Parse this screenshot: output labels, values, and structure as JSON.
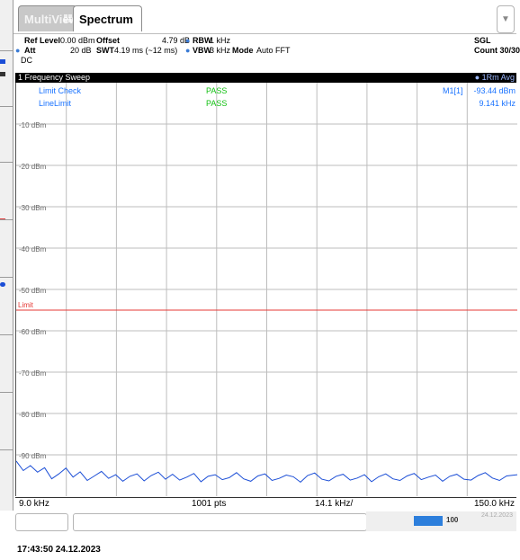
{
  "tabs": [
    {
      "label": "MultiView",
      "active": false
    },
    {
      "label": "Spectrum",
      "active": true
    }
  ],
  "params": {
    "ref_level_label": "Ref Level",
    "ref_level_value": "0.00 dBm",
    "offset_label": "Offset",
    "offset_value": "4.79 dB",
    "rbw_label": "RBW",
    "rbw_value": "1 kHz",
    "att_label": "Att",
    "att_value": "20 dB",
    "swt_label": "SWT",
    "swt_value": "4.19 ms (~12 ms)",
    "vbw_label": "VBW",
    "vbw_value": "3 kHz",
    "mode_label": "Mode",
    "mode_value": "Auto FFT",
    "coupling": "DC",
    "sweep_mode": "SGL",
    "count": "Count 30/30"
  },
  "trace": {
    "title": "1 Frequency Sweep",
    "detector": "1Rm Avg"
  },
  "overlay": {
    "limit_check_label": "Limit Check",
    "limit_check_result": "PASS",
    "line_limit_label": "LineLimit",
    "line_limit_result": "PASS",
    "marker_label": "M1[1]",
    "marker_level": "-93.44 dBm",
    "marker_freq": "9.141 kHz",
    "limit_tag": "Limit"
  },
  "axis": {
    "start": "9.0 kHz",
    "points": "1001 pts",
    "per_div": "14.1 kHz/",
    "stop": "150.0 kHz"
  },
  "status": {
    "progress_label": "100",
    "date": "24.12.2023"
  },
  "timestamp": "17:43:50  24.12.2023",
  "chart_data": {
    "type": "line",
    "ytick_labels": [
      "-10 dBm",
      "-20 dBm",
      "-30 dBm",
      "-40 dBm",
      "-50 dBm",
      "-60 dBm",
      "-70 dBm",
      "-80 dBm",
      "-90 dBm"
    ],
    "ylim": [
      -100,
      0
    ],
    "xlim": [
      9.0,
      150.0
    ],
    "limit_line_dbm": -55,
    "grid": true,
    "series": [
      {
        "color": "#1a4dd6",
        "x": [
          9.0,
          11.0,
          13.0,
          15.0,
          17.0,
          19.0,
          21.0,
          23.0,
          25.0,
          27.0,
          29.0,
          31.0,
          33.0,
          35.0,
          37.0,
          39.0,
          41.0,
          43.0,
          45.0,
          47.0,
          49.0,
          51.0,
          53.0,
          55.0,
          57.0,
          59.0,
          61.0,
          63.0,
          65.0,
          67.0,
          69.0,
          71.0,
          73.0,
          75.0,
          77.0,
          79.0,
          81.0,
          83.0,
          85.0,
          87.0,
          89.0,
          91.0,
          93.0,
          95.0,
          97.0,
          99.0,
          101.0,
          103.0,
          105.0,
          107.0,
          109.0,
          111.0,
          113.0,
          115.0,
          117.0,
          119.0,
          121.0,
          123.0,
          125.0,
          127.0,
          129.0,
          131.0,
          133.0,
          135.0,
          137.0,
          139.0,
          141.0,
          143.0,
          145.0,
          147.0,
          150.0
        ],
        "y": [
          -91.5,
          -93.8,
          -92.6,
          -94.2,
          -93.1,
          -95.8,
          -94.6,
          -93.2,
          -95.4,
          -94.1,
          -96.2,
          -95.1,
          -94.0,
          -95.7,
          -94.8,
          -96.4,
          -95.2,
          -94.6,
          -96.3,
          -95.0,
          -94.2,
          -95.9,
          -94.7,
          -96.1,
          -95.4,
          -94.5,
          -96.5,
          -95.2,
          -94.8,
          -96.0,
          -95.5,
          -94.3,
          -95.8,
          -96.4,
          -95.1,
          -94.6,
          -96.2,
          -95.7,
          -94.9,
          -95.3,
          -96.6,
          -95.0,
          -94.4,
          -95.9,
          -96.3,
          -95.2,
          -94.7,
          -96.1,
          -95.6,
          -94.8,
          -96.5,
          -95.3,
          -94.6,
          -95.8,
          -96.2,
          -95.1,
          -94.5,
          -96.0,
          -95.4,
          -94.9,
          -96.4,
          -95.2,
          -94.7,
          -95.9,
          -96.1,
          -95.0,
          -94.3,
          -95.6,
          -96.2,
          -95.1,
          -94.8
        ]
      }
    ]
  }
}
